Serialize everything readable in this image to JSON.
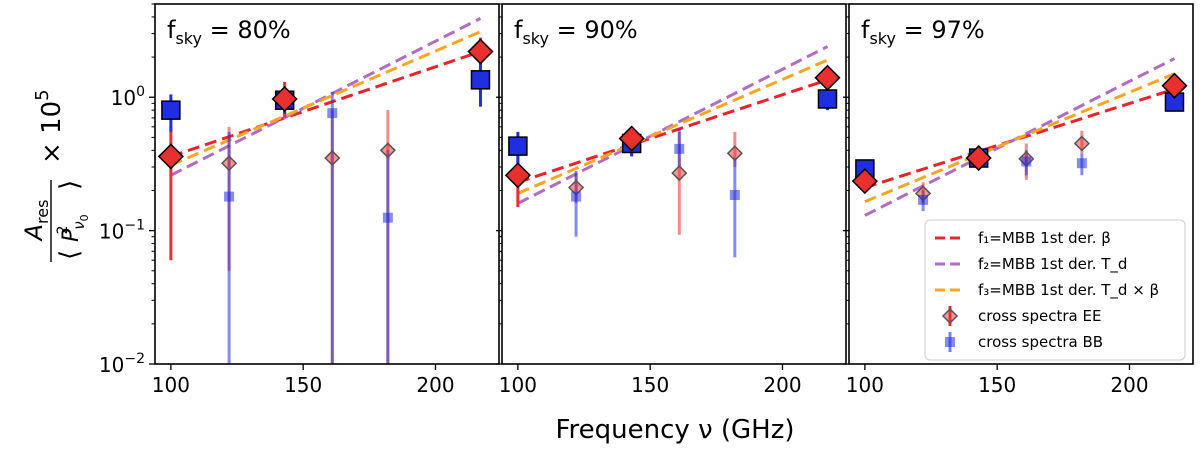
{
  "chart_data": {
    "type": "scatter",
    "xlabel": "Frequency ν (GHz)",
    "ylabel": "A_res / ⟨P²_ν0⟩ × 10^5",
    "ylabel_parts": {
      "A": "A",
      "res": "res",
      "P": "P",
      "sq": "2",
      "nu": "ν",
      "zero": "0",
      "times": "× 10",
      "exp": "5"
    },
    "xscale": "linear",
    "yscale": "log",
    "xlim": [
      94,
      224
    ],
    "ylim": [
      0.01,
      5
    ],
    "xticks": [
      100,
      150,
      200
    ],
    "xtick_labels": [
      "100",
      "150",
      "200"
    ],
    "yticks": [
      0.01,
      0.1,
      1.0
    ],
    "ytick_labels": [
      {
        "base": "10",
        "exp": "−2"
      },
      {
        "base": "10",
        "exp": "−1"
      },
      {
        "base": "10",
        "exp": "0"
      }
    ],
    "colors": {
      "f1": "#e8232a",
      "f2": "#b06bc4",
      "f3": "#f5a623",
      "ee": "#e8302f",
      "bb": "#1f2fe0",
      "axis": "#000000"
    },
    "legend": {
      "position": "lower-right-panel-3",
      "entries": [
        {
          "key": "f1",
          "style": "dashed",
          "label": "f₁=MBB 1st der. β"
        },
        {
          "key": "f2",
          "style": "dashed",
          "label": "f₂=MBB 1st der. T_d"
        },
        {
          "key": "f3",
          "style": "dashed",
          "label": "f₃=MBB 1st der. T_d × β"
        },
        {
          "key": "ee",
          "style": "diamond",
          "label": "cross spectra EE"
        },
        {
          "key": "bb",
          "style": "square",
          "label": "cross spectra BB"
        }
      ]
    },
    "panels": [
      {
        "label": "f_sky = 80%",
        "label_parts": {
          "f": "f",
          "sub": "sky",
          "rest": " = 80%"
        },
        "fits": [
          {
            "key": "f1",
            "x": [
              100,
              217
            ],
            "y": [
              0.36,
              2.2
            ]
          },
          {
            "key": "f2",
            "x": [
              100,
              217
            ],
            "y": [
              0.26,
              3.9
            ]
          },
          {
            "key": "f3",
            "x": [
              100,
              217
            ],
            "y": [
              0.31,
              3.1
            ]
          }
        ],
        "ee_auto": [
          {
            "x": 100,
            "y": 0.36,
            "lo": 0.06,
            "hi": 0.6
          },
          {
            "x": 143,
            "y": 0.97,
            "lo": 0.7,
            "hi": 1.3
          },
          {
            "x": 217,
            "y": 2.2,
            "lo": 1.6,
            "hi": 2.8
          }
        ],
        "bb_auto": [
          {
            "x": 100,
            "y": 0.8,
            "lo": 0.55,
            "hi": 1.05
          },
          {
            "x": 143,
            "y": 0.95,
            "lo": 0.75,
            "hi": 1.15
          },
          {
            "x": 217,
            "y": 1.35,
            "lo": 0.85,
            "hi": 2.0
          }
        ],
        "ee_cross": [
          {
            "x": 122,
            "y": 0.32,
            "lo": 0.05,
            "hi": 0.6
          },
          {
            "x": 161,
            "y": 0.35,
            "lo": 0.008,
            "hi": 0.8
          },
          {
            "x": 182,
            "y": 0.4,
            "lo": 0.008,
            "hi": 0.8
          }
        ],
        "bb_cross": [
          {
            "x": 122,
            "y": 0.18,
            "lo": 0.008,
            "hi": 0.55
          },
          {
            "x": 161,
            "y": 0.76,
            "lo": 0.008,
            "hi": 1.1
          },
          {
            "x": 182,
            "y": 0.125,
            "lo": 0.008,
            "hi": 0.4
          }
        ]
      },
      {
        "label": "f_sky = 90%",
        "label_parts": {
          "f": "f",
          "sub": "sky",
          "rest": " = 90%"
        },
        "fits": [
          {
            "key": "f1",
            "x": [
              100,
              217
            ],
            "y": [
              0.23,
              1.35
            ]
          },
          {
            "key": "f2",
            "x": [
              100,
              217
            ],
            "y": [
              0.16,
              2.4
            ]
          },
          {
            "key": "f3",
            "x": [
              100,
              217
            ],
            "y": [
              0.19,
              1.9
            ]
          }
        ],
        "ee_auto": [
          {
            "x": 100,
            "y": 0.26,
            "lo": 0.15,
            "hi": 0.36
          },
          {
            "x": 143,
            "y": 0.49,
            "lo": 0.4,
            "hi": 0.6
          },
          {
            "x": 217,
            "y": 1.4,
            "lo": 1.15,
            "hi": 1.7
          }
        ],
        "bb_auto": [
          {
            "x": 100,
            "y": 0.43,
            "lo": 0.32,
            "hi": 0.55
          },
          {
            "x": 143,
            "y": 0.45,
            "lo": 0.36,
            "hi": 0.55
          },
          {
            "x": 217,
            "y": 0.97,
            "lo": 0.8,
            "hi": 1.15
          }
        ],
        "ee_cross": [
          {
            "x": 122,
            "y": 0.21,
            "lo": 0.16,
            "hi": 0.27
          },
          {
            "x": 161,
            "y": 0.27,
            "lo": 0.093,
            "hi": 0.55
          },
          {
            "x": 182,
            "y": 0.38,
            "lo": 0.3,
            "hi": 0.55
          }
        ],
        "bb_cross": [
          {
            "x": 122,
            "y": 0.18,
            "lo": 0.09,
            "hi": 0.28
          },
          {
            "x": 161,
            "y": 0.41,
            "lo": 0.3,
            "hi": 0.58
          },
          {
            "x": 182,
            "y": 0.185,
            "lo": 0.063,
            "hi": 0.35
          }
        ]
      },
      {
        "label": "f_sky = 97%",
        "label_parts": {
          "f": "f",
          "sub": "sky",
          "rest": " = 97%"
        },
        "fits": [
          {
            "key": "f1",
            "x": [
              100,
              217
            ],
            "y": [
              0.21,
              1.15
            ]
          },
          {
            "key": "f2",
            "x": [
              100,
              217
            ],
            "y": [
              0.13,
              1.95
            ]
          },
          {
            "key": "f3",
            "x": [
              100,
              217
            ],
            "y": [
              0.165,
              1.5
            ]
          }
        ],
        "ee_auto": [
          {
            "x": 100,
            "y": 0.235,
            "lo": 0.2,
            "hi": 0.27
          },
          {
            "x": 143,
            "y": 0.35,
            "lo": 0.32,
            "hi": 0.39
          },
          {
            "x": 217,
            "y": 1.22,
            "lo": 1.1,
            "hi": 1.35
          }
        ],
        "bb_auto": [
          {
            "x": 100,
            "y": 0.29,
            "lo": 0.25,
            "hi": 0.33
          },
          {
            "x": 143,
            "y": 0.35,
            "lo": 0.31,
            "hi": 0.39
          },
          {
            "x": 217,
            "y": 0.92,
            "lo": 0.82,
            "hi": 1.02
          }
        ],
        "ee_cross": [
          {
            "x": 122,
            "y": 0.19,
            "lo": 0.16,
            "hi": 0.23
          },
          {
            "x": 161,
            "y": 0.345,
            "lo": 0.24,
            "hi": 0.45
          },
          {
            "x": 182,
            "y": 0.45,
            "lo": 0.38,
            "hi": 0.56
          }
        ],
        "bb_cross": [
          {
            "x": 122,
            "y": 0.17,
            "lo": 0.14,
            "hi": 0.2
          },
          {
            "x": 161,
            "y": 0.33,
            "lo": 0.26,
            "hi": 0.4
          },
          {
            "x": 182,
            "y": 0.32,
            "lo": 0.26,
            "hi": 0.38
          }
        ]
      }
    ]
  }
}
